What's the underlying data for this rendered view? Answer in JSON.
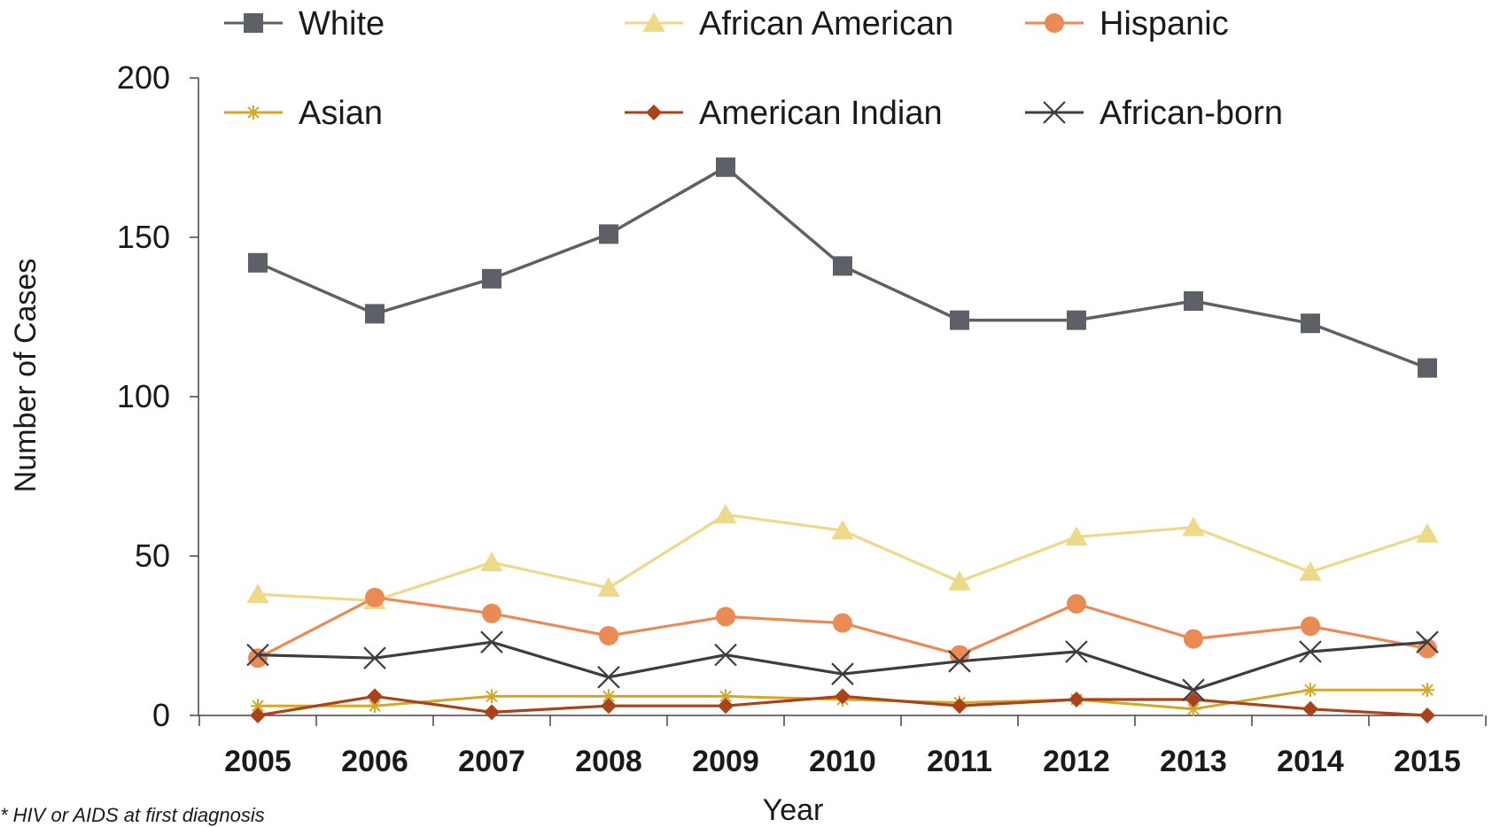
{
  "footnote": "* HIV or AIDS at first diagnosis",
  "chart_data": {
    "type": "line",
    "title": "",
    "xlabel": "Year",
    "ylabel": "Number of Cases",
    "ylim": [
      0,
      200
    ],
    "yticks": [
      0,
      50,
      100,
      150,
      200
    ],
    "grid": false,
    "legend_position": "top",
    "categories": [
      "2005",
      "2006",
      "2007",
      "2008",
      "2009",
      "2010",
      "2011",
      "2012",
      "2013",
      "2014",
      "2015"
    ],
    "series": [
      {
        "name": "White",
        "marker": "square",
        "color": "#5d6167",
        "values": [
          142,
          126,
          137,
          151,
          172,
          141,
          124,
          124,
          130,
          123,
          109
        ]
      },
      {
        "name": "African American",
        "marker": "triangle",
        "color": "#ecd98a",
        "values": [
          38,
          36,
          48,
          40,
          63,
          58,
          42,
          56,
          59,
          45,
          57
        ]
      },
      {
        "name": "Hispanic",
        "marker": "circle",
        "color": "#ea8a55",
        "values": [
          18,
          37,
          32,
          25,
          31,
          29,
          19,
          35,
          24,
          28,
          21
        ]
      },
      {
        "name": "Asian",
        "marker": "star",
        "color": "#d4a62a",
        "values": [
          3,
          3,
          6,
          6,
          6,
          5,
          4,
          5,
          2,
          8,
          8
        ]
      },
      {
        "name": "American Indian",
        "marker": "diamond",
        "color": "#a9441a",
        "values": [
          0,
          6,
          1,
          3,
          3,
          6,
          3,
          5,
          5,
          2,
          0
        ]
      },
      {
        "name": "African-born",
        "marker": "x",
        "color": "#3a3d41",
        "values": [
          19,
          18,
          23,
          12,
          19,
          13,
          17,
          20,
          8,
          20,
          23
        ]
      }
    ]
  }
}
